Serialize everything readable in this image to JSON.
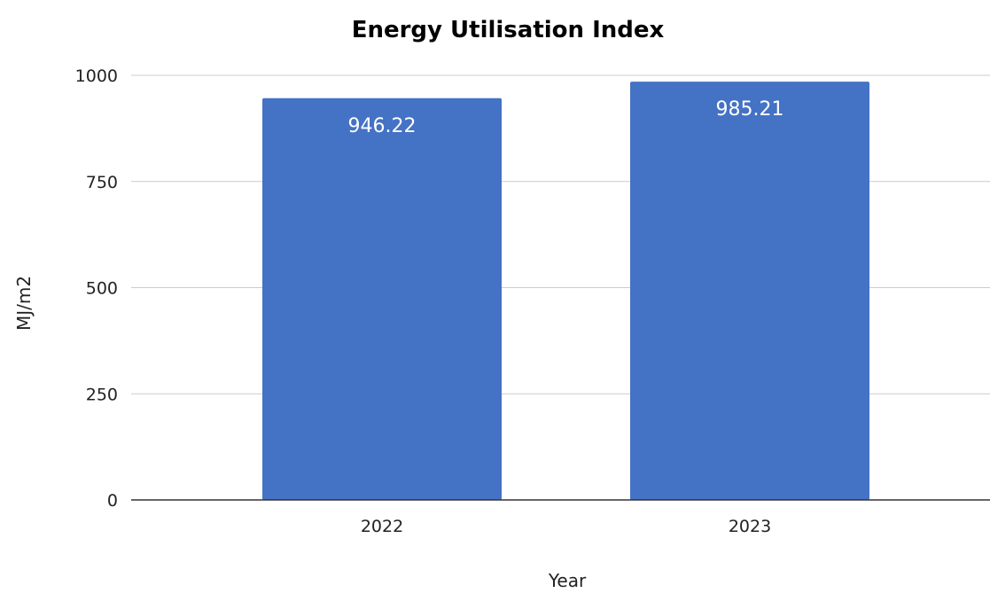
{
  "chart_data": {
    "type": "bar",
    "title": "Energy Utilisation Index",
    "xlabel": "Year",
    "ylabel": "MJ/m2",
    "categories": [
      "2022",
      "2023"
    ],
    "values": [
      946.22,
      985.21
    ],
    "data_labels": [
      "946.22",
      "985.21"
    ],
    "ylim": [
      0,
      1000
    ],
    "yticks": [
      0,
      250,
      500,
      750,
      1000
    ],
    "ytick_labels": [
      "0",
      "250",
      "500",
      "750",
      "1000"
    ],
    "grid": true,
    "legend": "none",
    "bar_color": "#4472C4",
    "label_color": "#ffffff"
  }
}
